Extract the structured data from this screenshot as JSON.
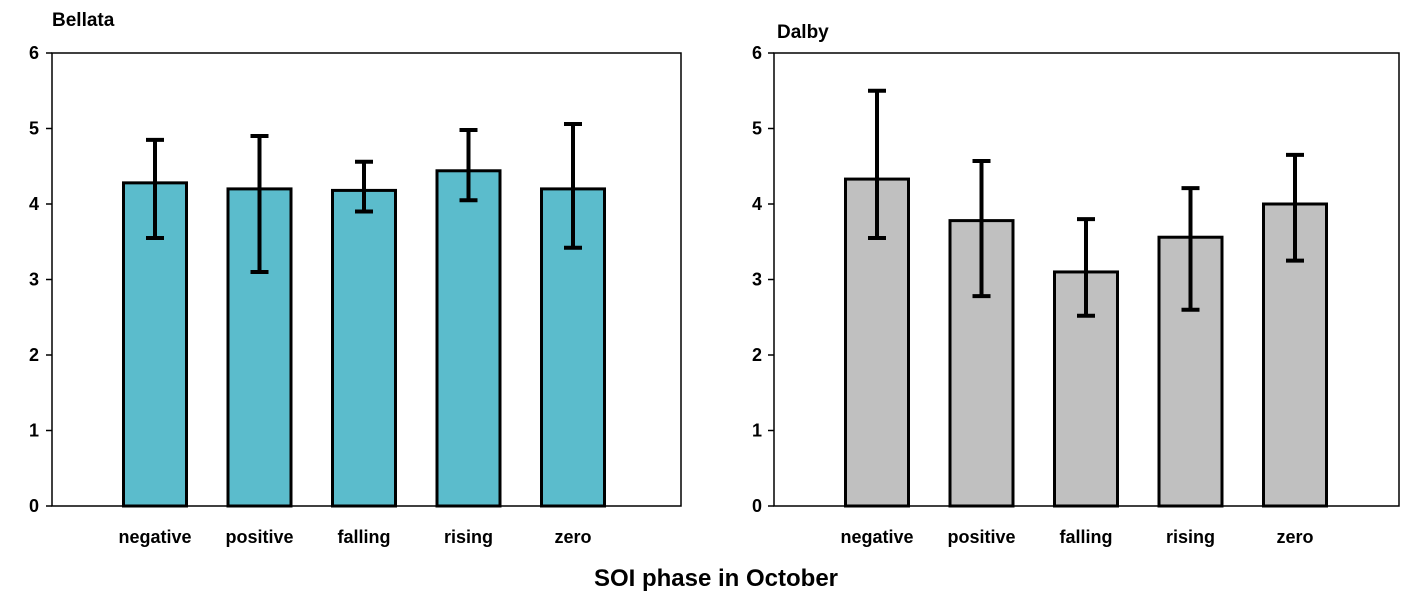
{
  "figure": {
    "xlabel": "SOI phase in October"
  },
  "chart_data": [
    {
      "type": "bar",
      "title": "Bellata",
      "xlabel": "",
      "ylabel": "",
      "ylim": [
        0,
        6
      ],
      "yticks": [
        "0",
        "1",
        "2",
        "3",
        "4",
        "5",
        "6"
      ],
      "categories": [
        "negative",
        "positive",
        "falling",
        "rising",
        "zero"
      ],
      "values": [
        4.28,
        4.2,
        4.18,
        4.44,
        4.2
      ],
      "error_low": [
        3.55,
        3.1,
        3.9,
        4.05,
        3.42
      ],
      "error_high": [
        4.85,
        4.9,
        4.56,
        4.98,
        5.06
      ],
      "bar_color": "#5bbccc",
      "grid": false,
      "legend": "none"
    },
    {
      "type": "bar",
      "title": "Dalby",
      "xlabel": "",
      "ylabel": "",
      "ylim": [
        0,
        6
      ],
      "yticks": [
        "0",
        "1",
        "2",
        "3",
        "4",
        "5",
        "6"
      ],
      "categories": [
        "negative",
        "positive",
        "falling",
        "rising",
        "zero"
      ],
      "values": [
        4.33,
        3.78,
        3.1,
        3.56,
        4.0
      ],
      "error_low": [
        3.55,
        2.78,
        2.52,
        2.6,
        3.25
      ],
      "error_high": [
        5.5,
        4.57,
        3.8,
        4.21,
        4.65
      ],
      "bar_color": "#c0c0c0",
      "grid": false,
      "legend": "none"
    }
  ]
}
